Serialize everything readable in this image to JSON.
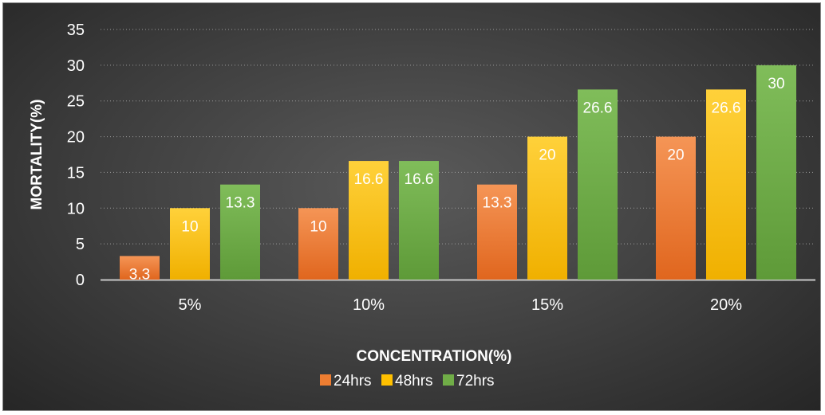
{
  "chart_data": {
    "type": "bar",
    "categories": [
      "5%",
      "10%",
      "15%",
      "20%"
    ],
    "series": [
      {
        "name": "24hrs",
        "values": [
          3.3,
          10,
          13.3,
          20
        ],
        "color": "#ed7d31"
      },
      {
        "name": "48hrs",
        "values": [
          10,
          16.6,
          20,
          26.6
        ],
        "color": "#ffc000"
      },
      {
        "name": "72hrs",
        "values": [
          13.3,
          16.6,
          26.6,
          30
        ],
        "color": "#70ad47"
      }
    ],
    "data_labels": [
      [
        "3.3",
        "10",
        "13.3",
        "20"
      ],
      [
        "10",
        "16.6",
        "20",
        "26.6"
      ],
      [
        "13.3",
        "16.6",
        "26.6",
        "30"
      ]
    ],
    "title": "",
    "xlabel": "CONCENTRATION(%)",
    "ylabel": "MORTALITY(%)",
    "ylim": [
      0,
      35
    ],
    "yticks": [
      0,
      5,
      10,
      15,
      20,
      25,
      30,
      35
    ],
    "grid": true,
    "legend_position": "bottom"
  }
}
